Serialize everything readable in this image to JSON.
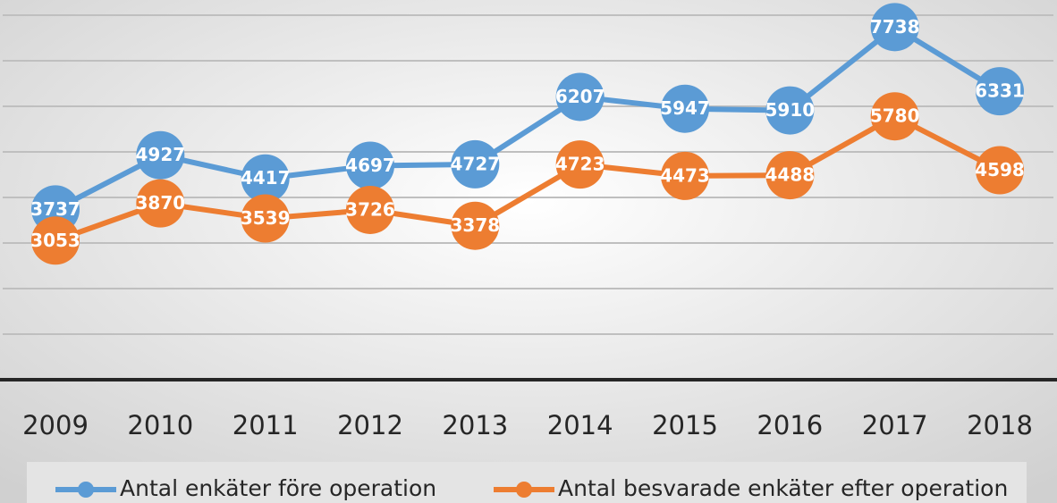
{
  "chart_data": {
    "type": "line",
    "categories": [
      "2009",
      "2010",
      "2011",
      "2012",
      "2013",
      "2014",
      "2015",
      "2016",
      "2017",
      "2018"
    ],
    "series": [
      {
        "name": "Antal enkäter före operation",
        "color": "#5b9bd5",
        "values": [
          3737,
          4927,
          4417,
          4697,
          4727,
          6207,
          5947,
          5910,
          7738,
          6331
        ]
      },
      {
        "name": "Antal besvarade enkäter efter operation",
        "color": "#ed7d31",
        "values": [
          3053,
          3870,
          3539,
          3726,
          3378,
          4723,
          4473,
          4488,
          5780,
          4598
        ]
      }
    ],
    "ylim": [
      0,
      8000
    ],
    "yticks": [
      0,
      1000,
      2000,
      3000,
      4000,
      5000,
      6000,
      7000,
      8000
    ],
    "grid": true,
    "legend": "bottom"
  }
}
